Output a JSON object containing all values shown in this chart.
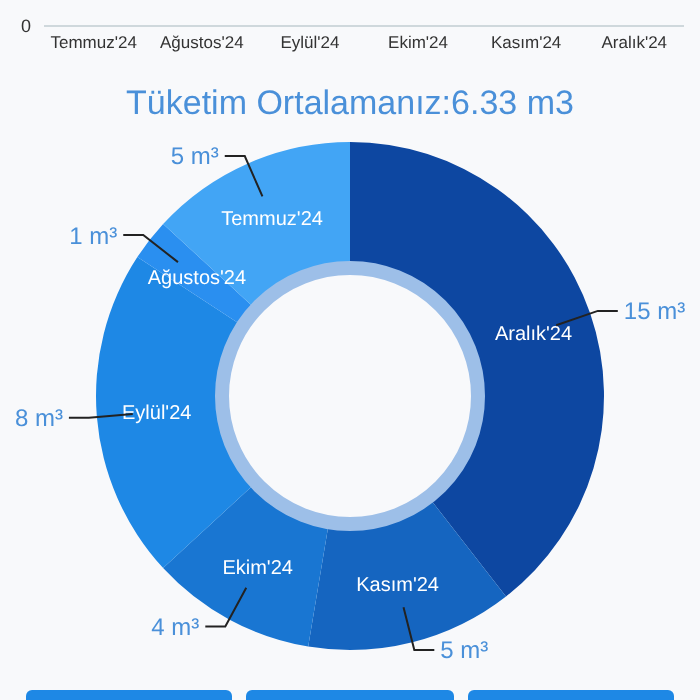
{
  "chart_data": [
    {
      "type": "other",
      "categories": [
        "Temmuz'24",
        "Ağustos'24",
        "Eylül'24",
        "Ekim'24",
        "Kasım'24",
        "Aralık'24"
      ],
      "annotations": [
        "0"
      ]
    },
    {
      "type": "donut",
      "title": "Tüketim Ortalamanız:6.33 m3",
      "categories": [
        "Aralık'24",
        "Kasım'24",
        "Ekim'24",
        "Eylül'24",
        "Ağustos'24",
        "Temmuz'24"
      ],
      "values": [
        15,
        5,
        4,
        8,
        1,
        5
      ],
      "colors": [
        "#0d47a1",
        "#1565c0",
        "#1976d2",
        "#1e88e5",
        "#2a8ff0",
        "#42a5f5"
      ],
      "value_labels": [
        "15 m³",
        "5 m³",
        "4 m³",
        "8 m³",
        "1 m³",
        "5 m³"
      ]
    }
  ]
}
